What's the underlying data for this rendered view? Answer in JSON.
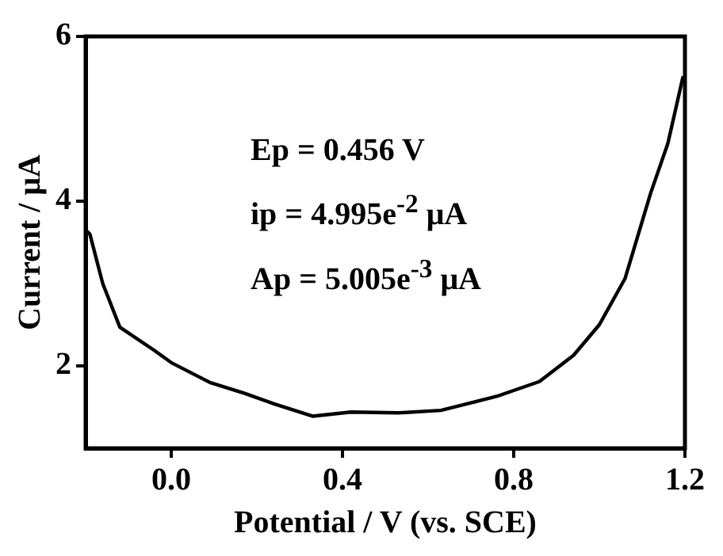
{
  "chart_data": {
    "type": "line",
    "xlabel": "Potential / V (vs. SCE)",
    "ylabel": "Current / μA",
    "annotations": [
      "Ep = 0.456 V",
      "ip = 4.995e$^{-2}$ μA",
      "Ap = 5.005e$^{-3}$ μA"
    ],
    "x": [
      -0.2,
      -0.19,
      -0.16,
      -0.12,
      -0.04,
      0.0,
      0.09,
      0.17,
      0.24,
      0.33,
      0.42,
      0.53,
      0.63,
      0.76,
      0.86,
      0.94,
      1.0,
      1.06,
      1.12,
      1.16,
      1.195
    ],
    "series": [
      {
        "color": "#000000",
        "values": [
          3.65,
          3.6,
          3.0,
          2.47,
          2.19,
          2.04,
          1.8,
          1.67,
          1.54,
          1.39,
          1.44,
          1.43,
          1.46,
          1.63,
          1.81,
          2.13,
          2.5,
          3.06,
          4.1,
          4.7,
          5.5
        ]
      }
    ],
    "xlim": [
      -0.2,
      1.2
    ],
    "xticks": [
      {
        "value": 0.0,
        "label": "0.0"
      },
      {
        "value": 0.4,
        "label": "0.4"
      },
      {
        "value": 0.8,
        "label": "0.8"
      },
      {
        "value": 1.2,
        "label": "1.2"
      }
    ],
    "ylim": [
      1.0,
      6
    ],
    "yticks": [
      2,
      4,
      6
    ],
    "grid": false,
    "legend": false,
    "marker": "none",
    "line_style": "solid"
  }
}
